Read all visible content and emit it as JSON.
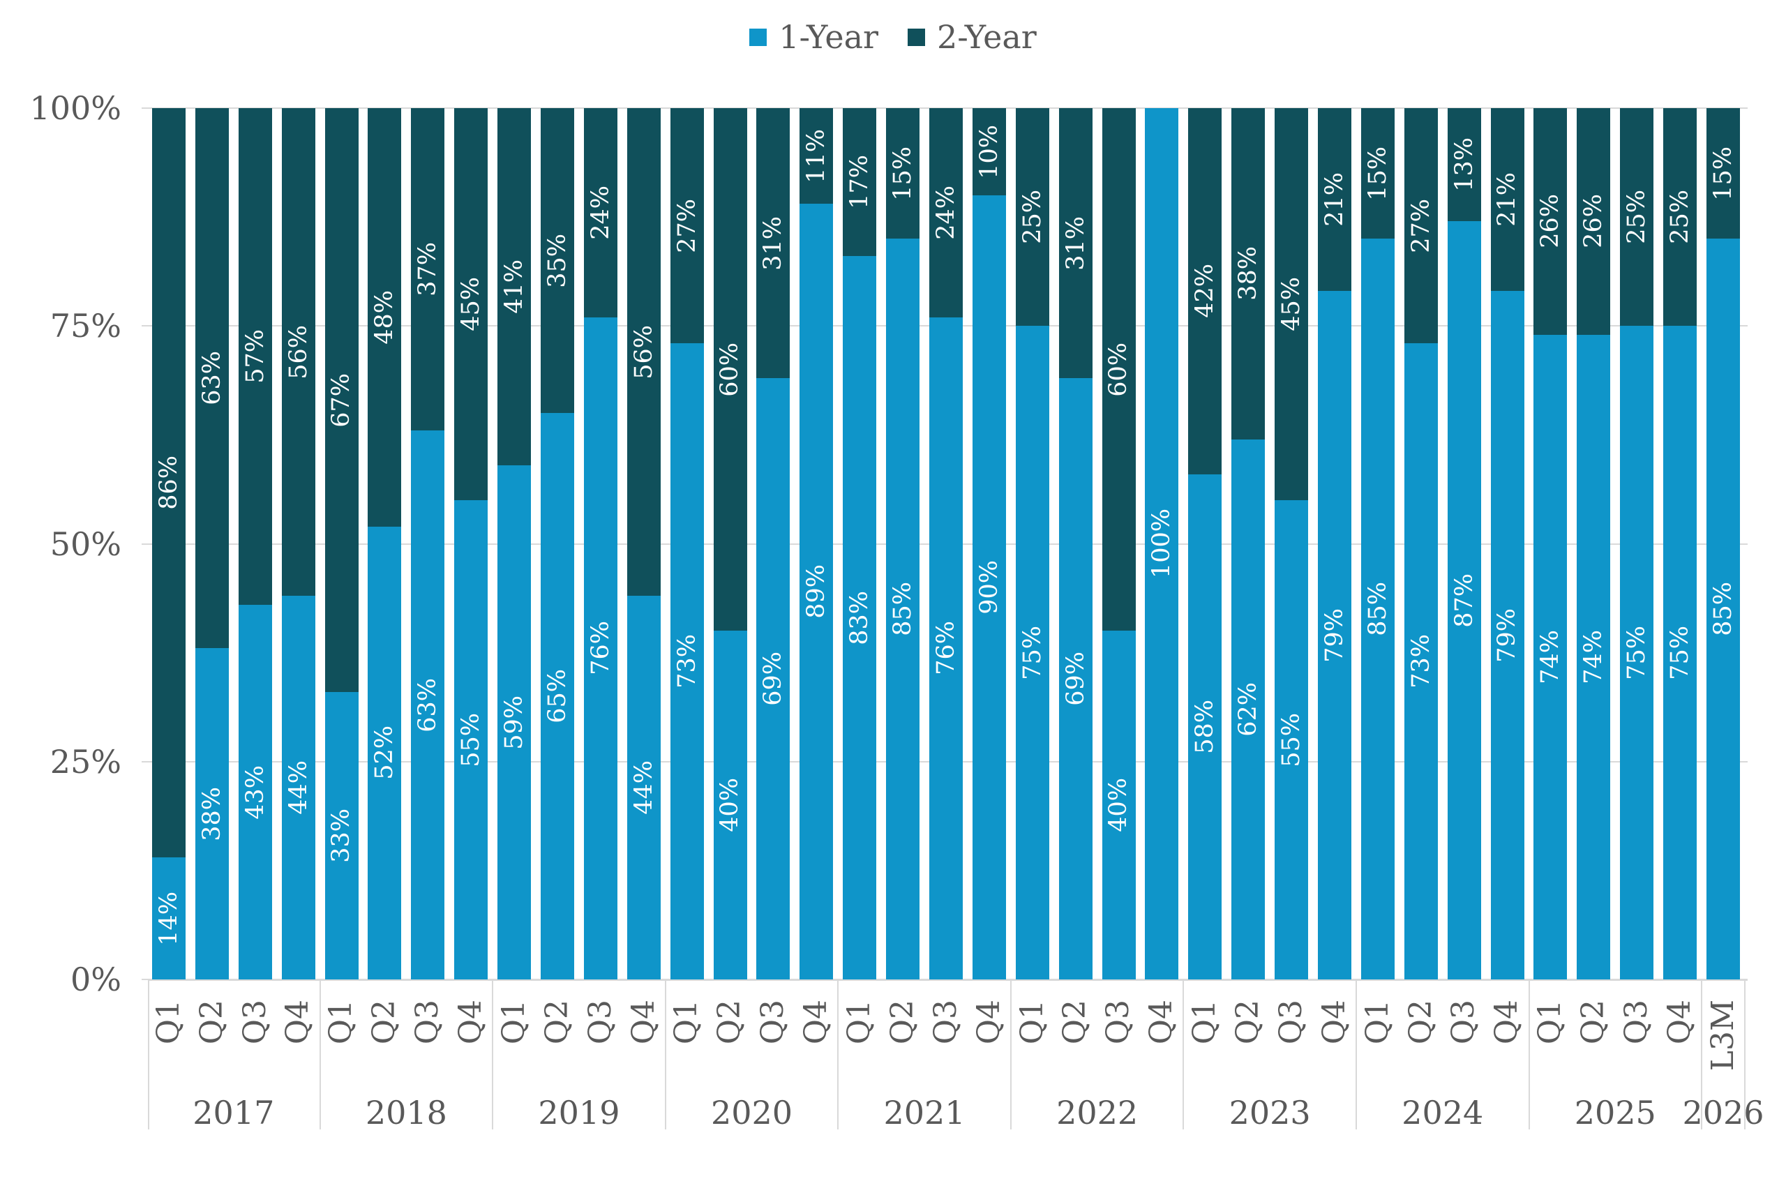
{
  "legend": {
    "items": [
      {
        "label": "1-Year",
        "color": "#0f95c9"
      },
      {
        "label": "2-Year",
        "color": "#10505b"
      }
    ]
  },
  "y_axis": {
    "ticks": [
      {
        "label": "100%",
        "value": 100
      },
      {
        "label": "75%",
        "value": 75
      },
      {
        "label": "50%",
        "value": 50
      },
      {
        "label": "25%",
        "value": 25
      },
      {
        "label": "0%",
        "value": 0
      }
    ]
  },
  "colors": {
    "one_year": "#0f95c9",
    "two_year": "#10505b",
    "axis_text": "#595959",
    "gridline": "#d9d9d9",
    "data_label_text": "#ffffff",
    "background": "#ffffff"
  },
  "chart_data": {
    "type": "bar",
    "subtype": "100-percent-stacked-column",
    "series_names": [
      "1-Year",
      "2-Year"
    ],
    "ylim": [
      0,
      100
    ],
    "grid": "horizontal",
    "legend_position": "top-center",
    "x_label_rotation": "vertical",
    "groups": [
      {
        "year": "2017",
        "bars": [
          {
            "q": "Q1",
            "one": 14,
            "one_label": "14%",
            "two": 86,
            "two_label": "86%"
          },
          {
            "q": "Q2",
            "one": 38,
            "one_label": "38%",
            "two": 63,
            "two_label": "63%"
          },
          {
            "q": "Q3",
            "one": 43,
            "one_label": "43%",
            "two": 57,
            "two_label": "57%"
          },
          {
            "q": "Q4",
            "one": 44,
            "one_label": "44%",
            "two": 56,
            "two_label": "56%"
          }
        ]
      },
      {
        "year": "2018",
        "bars": [
          {
            "q": "Q1",
            "one": 33,
            "one_label": "33%",
            "two": 67,
            "two_label": "67%"
          },
          {
            "q": "Q2",
            "one": 52,
            "one_label": "52%",
            "two": 48,
            "two_label": "48%"
          },
          {
            "q": "Q3",
            "one": 63,
            "one_label": "63%",
            "two": 37,
            "two_label": "37%"
          },
          {
            "q": "Q4",
            "one": 55,
            "one_label": "55%",
            "two": 45,
            "two_label": "45%"
          }
        ]
      },
      {
        "year": "2019",
        "bars": [
          {
            "q": "Q1",
            "one": 59,
            "one_label": "59%",
            "two": 41,
            "two_label": "41%"
          },
          {
            "q": "Q2",
            "one": 65,
            "one_label": "65%",
            "two": 35,
            "two_label": "35%"
          },
          {
            "q": "Q3",
            "one": 76,
            "one_label": "76%",
            "two": 24,
            "two_label": "24%"
          },
          {
            "q": "Q4",
            "one": 44,
            "one_label": "44%",
            "two": 56,
            "two_label": "56%"
          }
        ]
      },
      {
        "year": "2020",
        "bars": [
          {
            "q": "Q1",
            "one": 73,
            "one_label": "73%",
            "two": 27,
            "two_label": "27%"
          },
          {
            "q": "Q2",
            "one": 40,
            "one_label": "40%",
            "two": 60,
            "two_label": "60%"
          },
          {
            "q": "Q3",
            "one": 69,
            "one_label": "69%",
            "two": 31,
            "two_label": "31%"
          },
          {
            "q": "Q4",
            "one": 89,
            "one_label": "89%",
            "two": 11,
            "two_label": "11%"
          }
        ]
      },
      {
        "year": "2021",
        "bars": [
          {
            "q": "Q1",
            "one": 83,
            "one_label": "83%",
            "two": 17,
            "two_label": "17%"
          },
          {
            "q": "Q2",
            "one": 85,
            "one_label": "85%",
            "two": 15,
            "two_label": "15%"
          },
          {
            "q": "Q3",
            "one": 76,
            "one_label": "76%",
            "two": 24,
            "two_label": "24%"
          },
          {
            "q": "Q4",
            "one": 90,
            "one_label": "90%",
            "two": 10,
            "two_label": "10%"
          }
        ]
      },
      {
        "year": "2022",
        "bars": [
          {
            "q": "Q1",
            "one": 75,
            "one_label": "75%",
            "two": 25,
            "two_label": "25%"
          },
          {
            "q": "Q2",
            "one": 69,
            "one_label": "69%",
            "two": 31,
            "two_label": "31%"
          },
          {
            "q": "Q3",
            "one": 40,
            "one_label": "40%",
            "two": 60,
            "two_label": "60%"
          },
          {
            "q": "Q4",
            "one": 100,
            "one_label": "100%",
            "two": 0,
            "two_label": ""
          }
        ]
      },
      {
        "year": "2023",
        "bars": [
          {
            "q": "Q1",
            "one": 58,
            "one_label": "58%",
            "two": 42,
            "two_label": "42%"
          },
          {
            "q": "Q2",
            "one": 62,
            "one_label": "62%",
            "two": 38,
            "two_label": "38%"
          },
          {
            "q": "Q3",
            "one": 55,
            "one_label": "55%",
            "two": 45,
            "two_label": "45%"
          },
          {
            "q": "Q4",
            "one": 79,
            "one_label": "79%",
            "two": 21,
            "two_label": "21%"
          }
        ]
      },
      {
        "year": "2024",
        "bars": [
          {
            "q": "Q1",
            "one": 85,
            "one_label": "85%",
            "two": 15,
            "two_label": "15%"
          },
          {
            "q": "Q2",
            "one": 73,
            "one_label": "73%",
            "two": 27,
            "two_label": "27%"
          },
          {
            "q": "Q3",
            "one": 87,
            "one_label": "87%",
            "two": 13,
            "two_label": "13%"
          },
          {
            "q": "Q4",
            "one": 79,
            "one_label": "79%",
            "two": 21,
            "two_label": "21%"
          }
        ]
      },
      {
        "year": "2025",
        "bars": [
          {
            "q": "Q1",
            "one": 74,
            "one_label": "74%",
            "two": 26,
            "two_label": "26%"
          },
          {
            "q": "Q2",
            "one": 74,
            "one_label": "74%",
            "two": 26,
            "two_label": "26%"
          },
          {
            "q": "Q3",
            "one": 75,
            "one_label": "75%",
            "two": 25,
            "two_label": "25%"
          },
          {
            "q": "Q4",
            "one": 75,
            "one_label": "75%",
            "two": 25,
            "two_label": "25%"
          }
        ]
      },
      {
        "year": "2026",
        "bars": [
          {
            "q": "L3M",
            "one": 85,
            "one_label": "85%",
            "two": 15,
            "two_label": "15%"
          }
        ]
      }
    ]
  }
}
